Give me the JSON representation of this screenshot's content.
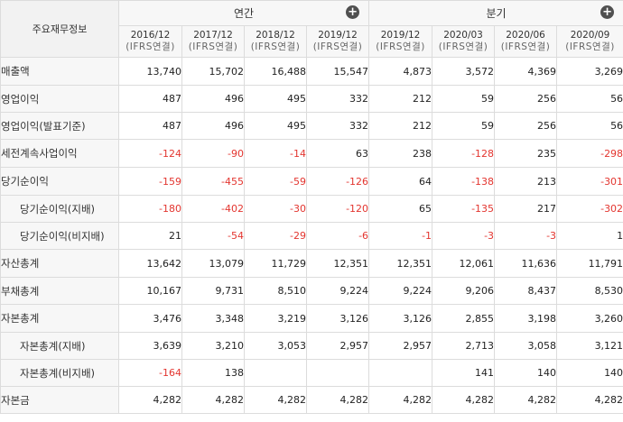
{
  "table": {
    "corner_label": "주요재무정보",
    "groups": [
      {
        "label": "연간",
        "expand_icon": "plus-circle-icon"
      },
      {
        "label": "분기",
        "expand_icon": "plus-circle-icon"
      }
    ],
    "periods": [
      {
        "date": "2016/12",
        "basis": "(IFRS연결)"
      },
      {
        "date": "2017/12",
        "basis": "(IFRS연결)"
      },
      {
        "date": "2018/12",
        "basis": "(IFRS연결)"
      },
      {
        "date": "2019/12",
        "basis": "(IFRS연결)"
      },
      {
        "date": "2019/12",
        "basis": "(IFRS연결)"
      },
      {
        "date": "2020/03",
        "basis": "(IFRS연결)"
      },
      {
        "date": "2020/06",
        "basis": "(IFRS연결)"
      },
      {
        "date": "2020/09",
        "basis": "(IFRS연결)"
      }
    ],
    "rows": [
      {
        "label": "매출액",
        "indent": false,
        "values": [
          "13,740",
          "15,702",
          "16,488",
          "15,547",
          "4,873",
          "3,572",
          "4,369",
          "3,269"
        ]
      },
      {
        "label": "영업이익",
        "indent": false,
        "values": [
          "487",
          "496",
          "495",
          "332",
          "212",
          "59",
          "256",
          "56"
        ]
      },
      {
        "label": "영업이익(발표기준)",
        "indent": false,
        "values": [
          "487",
          "496",
          "495",
          "332",
          "212",
          "59",
          "256",
          "56"
        ]
      },
      {
        "label": "세전계속사업이익",
        "indent": false,
        "values": [
          "-124",
          "-90",
          "-14",
          "63",
          "238",
          "-128",
          "235",
          "-298"
        ]
      },
      {
        "label": "당기순이익",
        "indent": false,
        "values": [
          "-159",
          "-455",
          "-59",
          "-126",
          "64",
          "-138",
          "213",
          "-301"
        ]
      },
      {
        "label": "당기순이익(지배)",
        "indent": true,
        "values": [
          "-180",
          "-402",
          "-30",
          "-120",
          "65",
          "-135",
          "217",
          "-302"
        ]
      },
      {
        "label": "당기순이익(비지배)",
        "indent": true,
        "values": [
          "21",
          "-54",
          "-29",
          "-6",
          "-1",
          "-3",
          "-3",
          "1"
        ]
      },
      {
        "label": "자산총계",
        "indent": false,
        "values": [
          "13,642",
          "13,079",
          "11,729",
          "12,351",
          "12,351",
          "12,061",
          "11,636",
          "11,791"
        ]
      },
      {
        "label": "부채총계",
        "indent": false,
        "values": [
          "10,167",
          "9,731",
          "8,510",
          "9,224",
          "9,224",
          "9,206",
          "8,437",
          "8,530"
        ]
      },
      {
        "label": "자본총계",
        "indent": false,
        "values": [
          "3,476",
          "3,348",
          "3,219",
          "3,126",
          "3,126",
          "2,855",
          "3,198",
          "3,260"
        ]
      },
      {
        "label": "자본총계(지배)",
        "indent": true,
        "values": [
          "3,639",
          "3,210",
          "3,053",
          "2,957",
          "2,957",
          "2,713",
          "3,058",
          "3,121"
        ]
      },
      {
        "label": "자본총계(비지배)",
        "indent": true,
        "values": [
          "-164",
          "138",
          "",
          "",
          "",
          "141",
          "140",
          "140"
        ]
      },
      {
        "label": "자본금",
        "indent": false,
        "values": [
          "4,282",
          "4,282",
          "4,282",
          "4,282",
          "4,282",
          "4,282",
          "4,282",
          "4,282"
        ]
      }
    ]
  },
  "colors": {
    "negative": "#e3352f",
    "header_bg": "#f7f7f7",
    "border": "#dcdcdc",
    "icon_bg": "#505050"
  }
}
